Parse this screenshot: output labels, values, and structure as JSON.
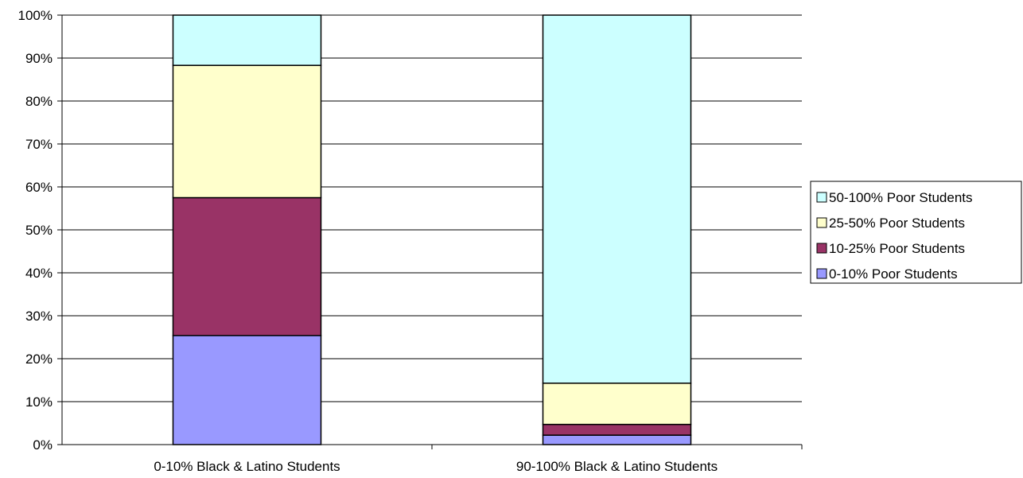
{
  "chart_data": {
    "type": "bar",
    "stacked": true,
    "percent_stacked": true,
    "title": "",
    "xlabel": "",
    "ylabel": "",
    "ylim": [
      0,
      100
    ],
    "y_ticks": [
      "0%",
      "10%",
      "20%",
      "30%",
      "40%",
      "50%",
      "60%",
      "70%",
      "80%",
      "90%",
      "100%"
    ],
    "categories": [
      "0-10% Black & Latino Students",
      "90-100% Black & Latino Students"
    ],
    "series": [
      {
        "name": "0-10% Poor Students",
        "color": "#9999ff",
        "values": [
          25.4,
          2.2
        ]
      },
      {
        "name": "10-25% Poor Students",
        "color": "#993366",
        "values": [
          32.1,
          2.5
        ]
      },
      {
        "name": "25-50% Poor Students",
        "color": "#ffffcc",
        "values": [
          30.8,
          9.6
        ]
      },
      {
        "name": "50-100% Poor Students",
        "color": "#ccffff",
        "values": [
          11.7,
          85.7
        ]
      }
    ],
    "grid": true,
    "legend": "right",
    "legend_order": [
      "50-100% Poor Students",
      "25-50% Poor Students",
      "10-25% Poor Students",
      "0-10% Poor Students"
    ]
  }
}
